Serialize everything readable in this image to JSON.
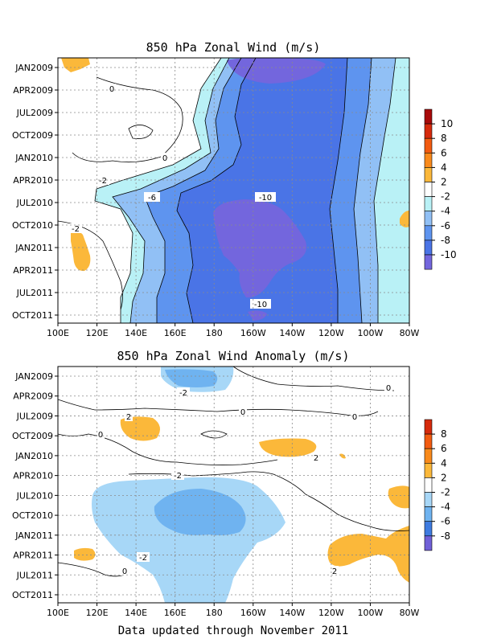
{
  "footer": "Data updated through November 2011",
  "chart_data": [
    {
      "type": "heatmap",
      "title": "850 hPa Zonal Wind (m/s)",
      "x_tick_labels": [
        "100E",
        "120E",
        "140E",
        "160E",
        "180",
        "160W",
        "140W",
        "120W",
        "100W",
        "80W"
      ],
      "y_tick_labels": [
        "JAN2009",
        "APR2009",
        "JUL2009",
        "OCT2009",
        "JAN2010",
        "APR2010",
        "JUL2010",
        "OCT2010",
        "JAN2011",
        "APR2011",
        "JUL2011",
        "OCT2011"
      ],
      "colorbar_labels": [
        "10",
        "8",
        "6",
        "4",
        "2",
        "-2",
        "-4",
        "-6",
        "-8",
        "-10"
      ],
      "contour_labels": [
        "0",
        "0",
        "-2",
        "-6",
        "-10",
        "-2",
        "-10"
      ],
      "grid": true
    },
    {
      "type": "heatmap",
      "title": "850 hPa Zonal Wind Anomaly (m/s)",
      "x_tick_labels": [
        "100E",
        "120E",
        "140E",
        "160E",
        "180",
        "160W",
        "140W",
        "120W",
        "100W",
        "80W"
      ],
      "y_tick_labels": [
        "JAN2009",
        "APR2009",
        "JUL2009",
        "OCT2009",
        "JAN2010",
        "APR2010",
        "JUL2010",
        "OCT2010",
        "JAN2011",
        "APR2011",
        "JUL2011",
        "OCT2011"
      ],
      "colorbar_labels": [
        "8",
        "6",
        "4",
        "2",
        "-2",
        "-4",
        "-6",
        "-8"
      ],
      "contour_labels": [
        "-2",
        "0",
        "0",
        "2",
        "0",
        "2",
        "0",
        "-2",
        "-2",
        "0",
        "2"
      ],
      "grid": true
    }
  ],
  "colors": {
    "neg10": "#7366dd",
    "neg8": "#4a74e6",
    "neg6": "#5e94ef",
    "neg4": "#91c0f5",
    "neg2": "#b9f1f6",
    "zero": "#ffffff",
    "pos2": "#fbb83a",
    "pos4": "#f98a1b",
    "pos6": "#f25b10",
    "pos8": "#d62a0c",
    "pos10": "#a80a0a",
    "an_neg2": "#a7d7f7",
    "an_neg4": "#6fb3f0",
    "an_neg6": "#3e7be0",
    "an_neg8": "#7060d8"
  }
}
